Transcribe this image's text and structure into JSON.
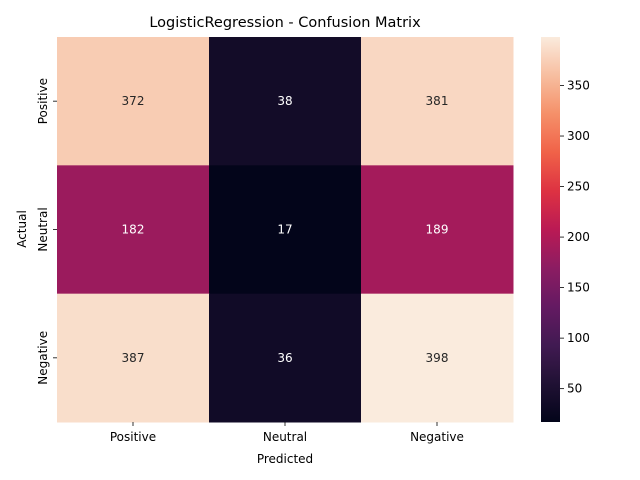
{
  "chart_data": {
    "type": "heatmap",
    "title": "LogisticRegression - Confusion Matrix",
    "xlabel": "Predicted",
    "ylabel": "Actual",
    "x_categories": [
      "Positive",
      "Neutral",
      "Negative"
    ],
    "y_categories": [
      "Positive",
      "Neutral",
      "Negative"
    ],
    "values": [
      [
        372,
        38,
        381
      ],
      [
        182,
        17,
        189
      ],
      [
        387,
        36,
        398
      ]
    ],
    "colormap": "rocket",
    "colorbar": {
      "range": [
        17,
        398
      ],
      "ticks": [
        50,
        100,
        150,
        200,
        250,
        300,
        350
      ]
    }
  }
}
